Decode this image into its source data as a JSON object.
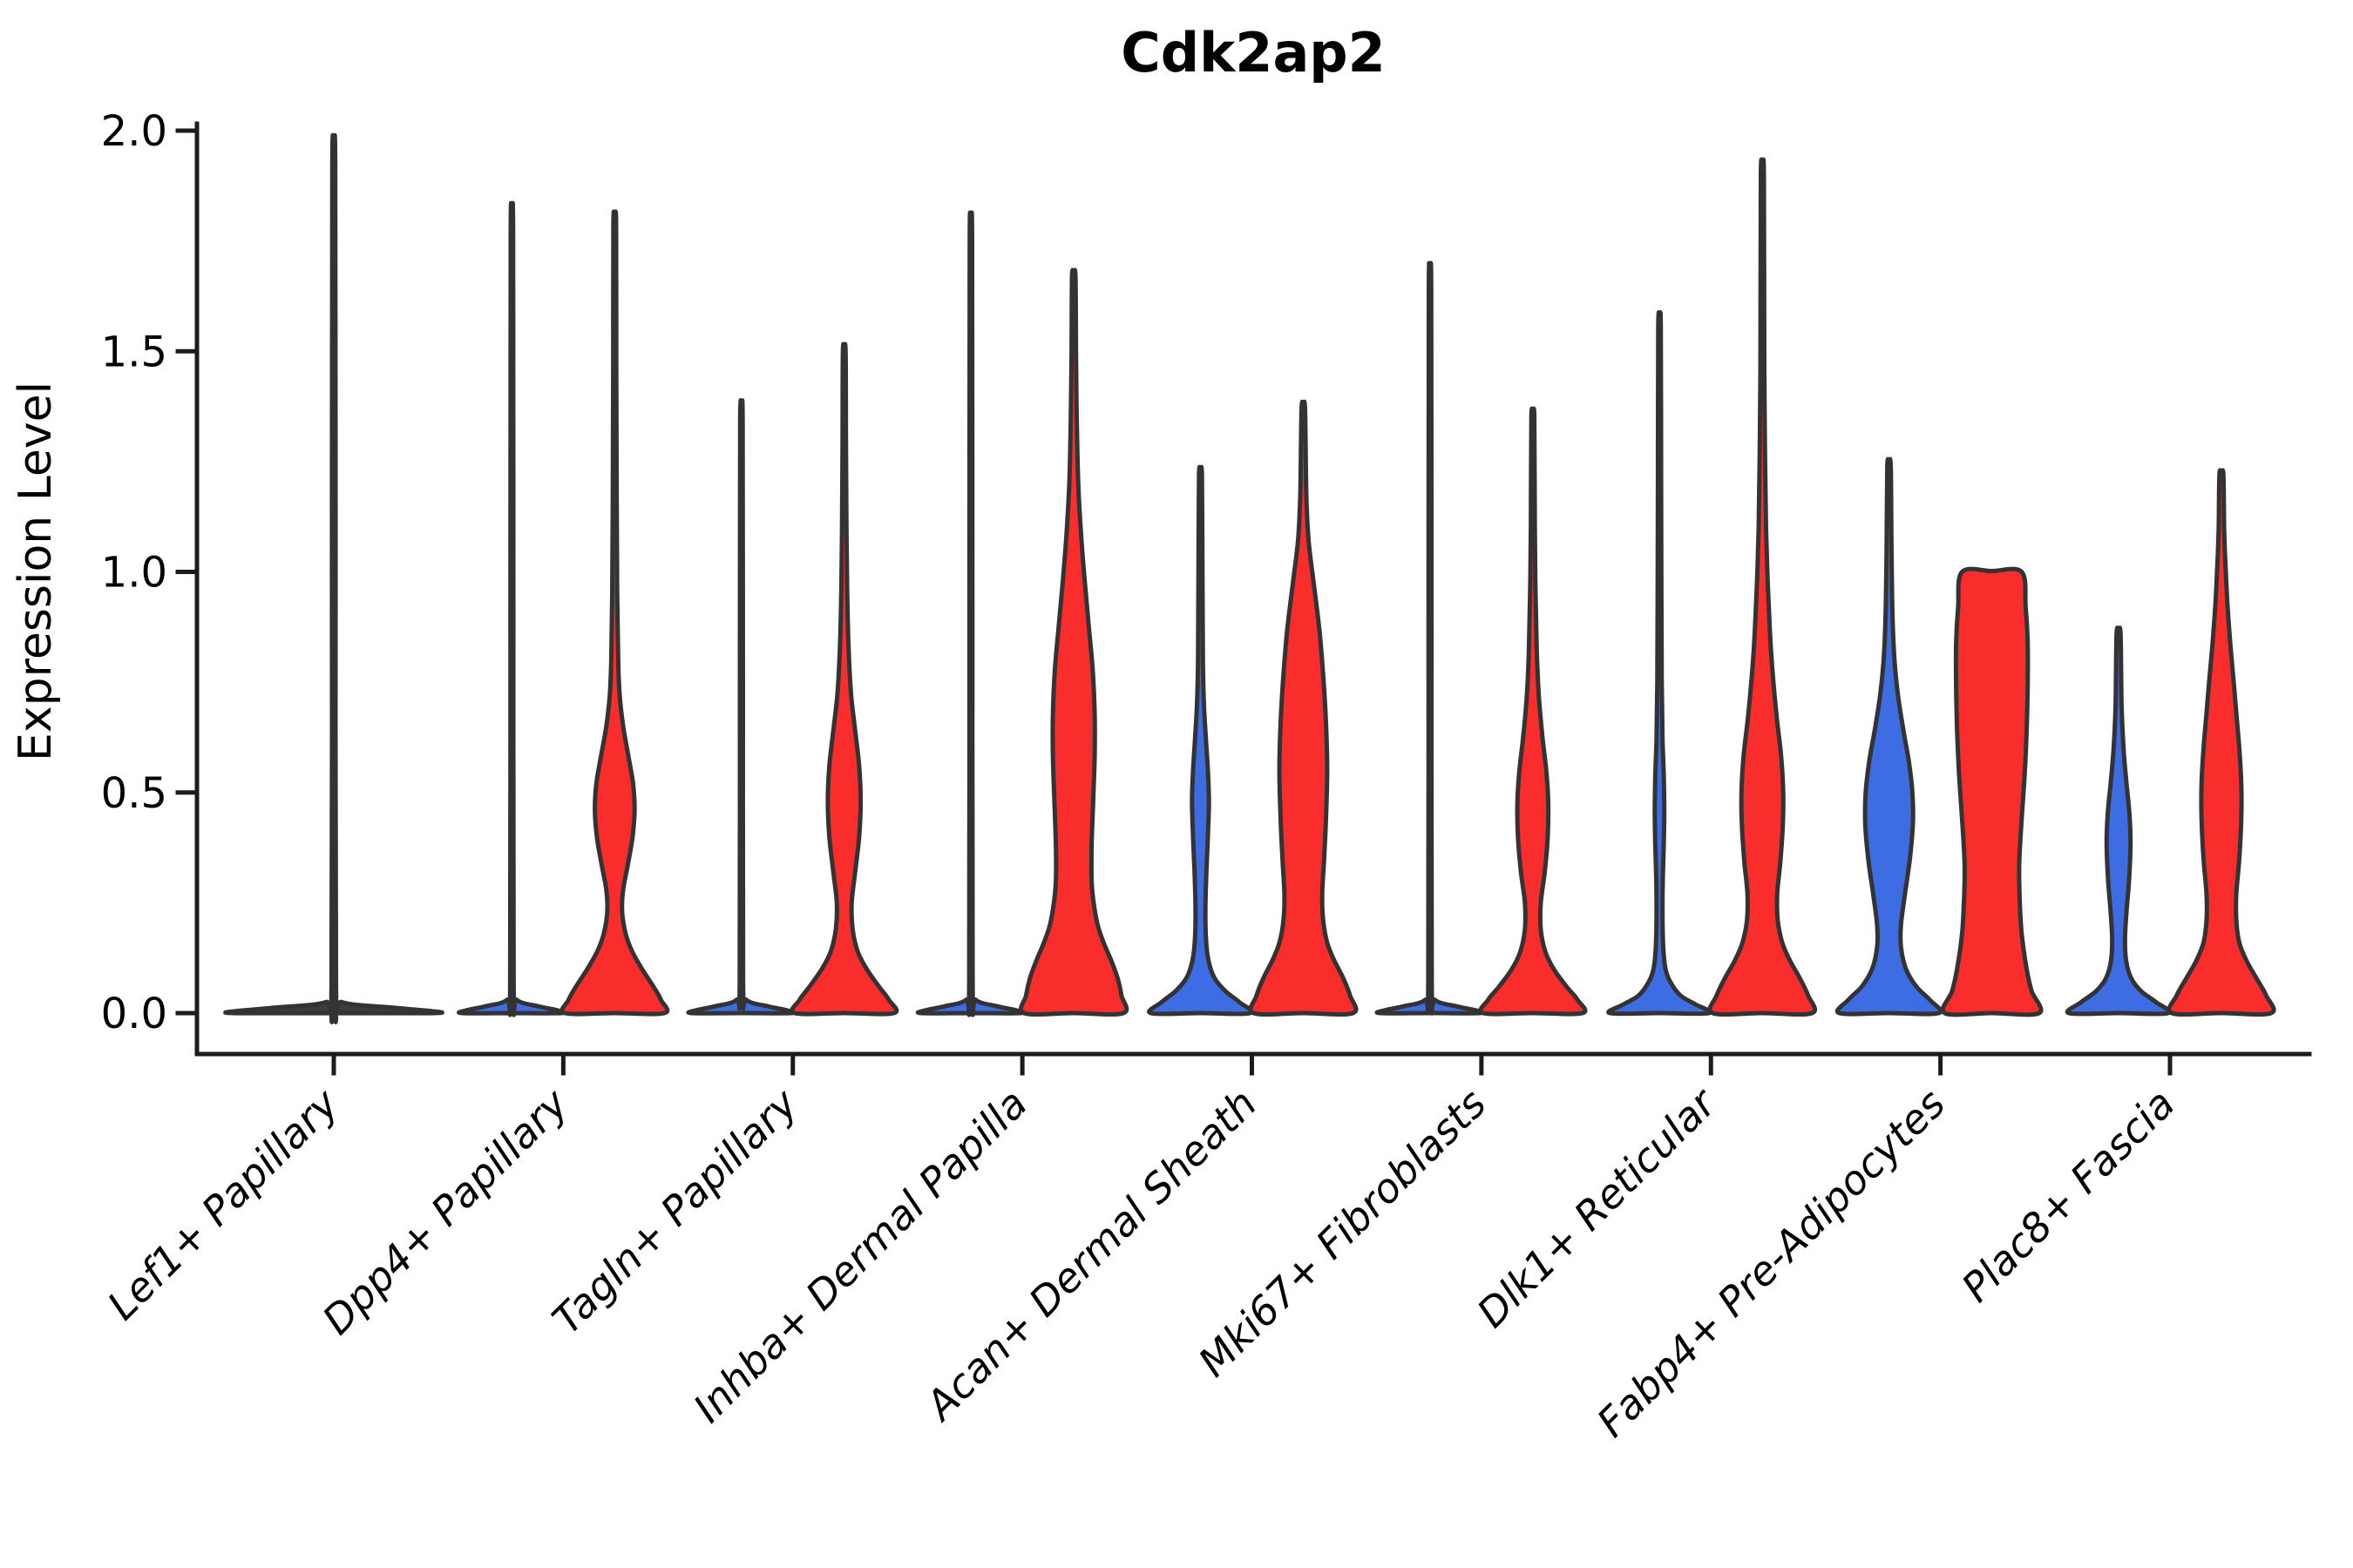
{
  "figure": {
    "title": "Cdk2ap2",
    "ylabel": "Expression Level"
  },
  "chart_data": {
    "type": "violin",
    "title": "Cdk2ap2",
    "xlabel": "",
    "ylabel": "Expression Level",
    "ylim": [
      -0.09,
      2.06
    ],
    "yticks": [
      0.0,
      0.5,
      1.0,
      1.5,
      2.0
    ],
    "ytick_labels": [
      "0.0",
      "0.5",
      "1.0",
      "1.5",
      "2.0"
    ],
    "grid": false,
    "legend_position": "none",
    "x_label_rotation_deg": 45,
    "categories": [
      "Lef1+ Papillary",
      "Dpp4+ Papillary",
      "Tagln+ Papillary",
      "Inhba+ Dermal Papilla",
      "Acan+ Dermal Sheath",
      "Mki67+ Fibroblasts",
      "Dlk1+ Reticular",
      "Fabp4+ Pre-Adipocytes",
      "Plac8+ Fascia"
    ],
    "colors": {
      "blue": "#3E6CE2",
      "red": "#FA2D2D",
      "flat_dark": "#3b3b3b",
      "outline": "#333333",
      "axis": "#1c1c1c"
    },
    "violins": [
      {
        "category": 0,
        "group": "single",
        "color_key": "flat_dark",
        "max_expression": 1.92,
        "clipped_top": false,
        "width": "full",
        "profile": [
          [
            0,
            1.0
          ],
          [
            0.005,
            0.95
          ],
          [
            0.012,
            0.6
          ],
          [
            0.025,
            0.08
          ],
          [
            0.06,
            0.022
          ],
          [
            1.0,
            0.018
          ],
          [
            1.92,
            0.015
          ]
        ]
      },
      {
        "category": 1,
        "group": "a",
        "color_key": "blue",
        "max_expression": 1.77,
        "clipped_top": false,
        "width": "half",
        "profile": [
          [
            0,
            1.0
          ],
          [
            0.006,
            0.93
          ],
          [
            0.015,
            0.55
          ],
          [
            0.03,
            0.1
          ],
          [
            0.07,
            0.035
          ],
          [
            0.9,
            0.03
          ],
          [
            1.77,
            0.025
          ]
        ]
      },
      {
        "category": 1,
        "group": "b",
        "color_key": "red",
        "max_expression": 1.79,
        "clipped_top": false,
        "width": "half",
        "profile": [
          [
            0,
            1.0
          ],
          [
            0.03,
            0.93
          ],
          [
            0.06,
            0.78
          ],
          [
            0.1,
            0.55
          ],
          [
            0.14,
            0.35
          ],
          [
            0.18,
            0.22
          ],
          [
            0.23,
            0.15
          ],
          [
            0.28,
            0.17
          ],
          [
            0.34,
            0.27
          ],
          [
            0.4,
            0.36
          ],
          [
            0.46,
            0.4
          ],
          [
            0.52,
            0.37
          ],
          [
            0.58,
            0.28
          ],
          [
            0.65,
            0.17
          ],
          [
            0.72,
            0.1
          ],
          [
            0.8,
            0.07
          ],
          [
            0.95,
            0.05
          ],
          [
            1.15,
            0.04
          ],
          [
            1.45,
            0.032
          ],
          [
            1.79,
            0.028
          ]
        ]
      },
      {
        "category": 2,
        "group": "a",
        "color_key": "blue",
        "max_expression": 1.34,
        "clipped_top": false,
        "width": "half",
        "profile": [
          [
            0,
            1.0
          ],
          [
            0.006,
            0.93
          ],
          [
            0.015,
            0.55
          ],
          [
            0.03,
            0.1
          ],
          [
            0.07,
            0.035
          ],
          [
            0.7,
            0.03
          ],
          [
            1.34,
            0.025
          ]
        ]
      },
      {
        "category": 2,
        "group": "b",
        "color_key": "red",
        "max_expression": 1.5,
        "clipped_top": false,
        "width": "half",
        "profile": [
          [
            0,
            1.0
          ],
          [
            0.03,
            0.9
          ],
          [
            0.06,
            0.7
          ],
          [
            0.1,
            0.45
          ],
          [
            0.14,
            0.27
          ],
          [
            0.19,
            0.17
          ],
          [
            0.25,
            0.15
          ],
          [
            0.32,
            0.22
          ],
          [
            0.4,
            0.3
          ],
          [
            0.48,
            0.33
          ],
          [
            0.56,
            0.3
          ],
          [
            0.64,
            0.22
          ],
          [
            0.72,
            0.14
          ],
          [
            0.82,
            0.09
          ],
          [
            0.95,
            0.06
          ],
          [
            1.1,
            0.045
          ],
          [
            1.3,
            0.035
          ],
          [
            1.5,
            0.028
          ]
        ]
      },
      {
        "category": 3,
        "group": "a",
        "color_key": "blue",
        "max_expression": 1.75,
        "clipped_top": false,
        "width": "half",
        "profile": [
          [
            0,
            1.0
          ],
          [
            0.006,
            0.93
          ],
          [
            0.015,
            0.55
          ],
          [
            0.03,
            0.1
          ],
          [
            0.07,
            0.035
          ],
          [
            0.9,
            0.03
          ],
          [
            1.75,
            0.025
          ]
        ]
      },
      {
        "category": 3,
        "group": "b",
        "color_key": "red",
        "max_expression": 1.67,
        "clipped_top": false,
        "width": "half",
        "profile": [
          [
            0,
            1.0
          ],
          [
            0.04,
            0.96
          ],
          [
            0.08,
            0.88
          ],
          [
            0.12,
            0.75
          ],
          [
            0.16,
            0.6
          ],
          [
            0.2,
            0.48
          ],
          [
            0.25,
            0.4
          ],
          [
            0.3,
            0.36
          ],
          [
            0.38,
            0.36
          ],
          [
            0.48,
            0.39
          ],
          [
            0.58,
            0.42
          ],
          [
            0.68,
            0.42
          ],
          [
            0.78,
            0.38
          ],
          [
            0.88,
            0.3
          ],
          [
            0.98,
            0.22
          ],
          [
            1.08,
            0.15
          ],
          [
            1.2,
            0.09
          ],
          [
            1.35,
            0.06
          ],
          [
            1.5,
            0.045
          ],
          [
            1.67,
            0.035
          ]
        ]
      },
      {
        "category": 4,
        "group": "a",
        "color_key": "blue",
        "max_expression": 1.22,
        "clipped_top": false,
        "width": "half",
        "profile": [
          [
            0,
            1.0
          ],
          [
            0.025,
            0.78
          ],
          [
            0.05,
            0.5
          ],
          [
            0.08,
            0.28
          ],
          [
            0.12,
            0.16
          ],
          [
            0.17,
            0.11
          ],
          [
            0.24,
            0.1
          ],
          [
            0.32,
            0.12
          ],
          [
            0.4,
            0.15
          ],
          [
            0.48,
            0.17
          ],
          [
            0.55,
            0.15
          ],
          [
            0.62,
            0.11
          ],
          [
            0.7,
            0.07
          ],
          [
            0.8,
            0.05
          ],
          [
            1.0,
            0.04
          ],
          [
            1.22,
            0.03
          ]
        ]
      },
      {
        "category": 4,
        "group": "b",
        "color_key": "red",
        "max_expression": 1.37,
        "clipped_top": false,
        "width": "half",
        "profile": [
          [
            0,
            1.0
          ],
          [
            0.04,
            0.94
          ],
          [
            0.08,
            0.8
          ],
          [
            0.12,
            0.62
          ],
          [
            0.16,
            0.48
          ],
          [
            0.21,
            0.4
          ],
          [
            0.27,
            0.38
          ],
          [
            0.35,
            0.42
          ],
          [
            0.45,
            0.46
          ],
          [
            0.55,
            0.48
          ],
          [
            0.65,
            0.46
          ],
          [
            0.75,
            0.41
          ],
          [
            0.85,
            0.34
          ],
          [
            0.93,
            0.26
          ],
          [
            1.0,
            0.18
          ],
          [
            1.08,
            0.1
          ],
          [
            1.18,
            0.06
          ],
          [
            1.37,
            0.035
          ]
        ]
      },
      {
        "category": 5,
        "group": "a",
        "color_key": "blue",
        "max_expression": 1.64,
        "clipped_top": false,
        "width": "half",
        "profile": [
          [
            0,
            1.0
          ],
          [
            0.006,
            0.93
          ],
          [
            0.015,
            0.55
          ],
          [
            0.03,
            0.1
          ],
          [
            0.07,
            0.035
          ],
          [
            0.85,
            0.03
          ],
          [
            1.64,
            0.025
          ]
        ]
      },
      {
        "category": 5,
        "group": "b",
        "color_key": "red",
        "max_expression": 1.35,
        "clipped_top": false,
        "width": "half",
        "profile": [
          [
            0,
            1.0
          ],
          [
            0.03,
            0.9
          ],
          [
            0.06,
            0.68
          ],
          [
            0.1,
            0.42
          ],
          [
            0.14,
            0.25
          ],
          [
            0.19,
            0.16
          ],
          [
            0.25,
            0.16
          ],
          [
            0.32,
            0.24
          ],
          [
            0.4,
            0.3
          ],
          [
            0.48,
            0.31
          ],
          [
            0.55,
            0.27
          ],
          [
            0.63,
            0.19
          ],
          [
            0.72,
            0.12
          ],
          [
            0.82,
            0.08
          ],
          [
            0.95,
            0.055
          ],
          [
            1.1,
            0.04
          ],
          [
            1.35,
            0.03
          ]
        ]
      },
      {
        "category": 6,
        "group": "a",
        "color_key": "blue",
        "max_expression": 1.56,
        "clipped_top": false,
        "width": "half",
        "profile": [
          [
            0,
            1.0
          ],
          [
            0.02,
            0.72
          ],
          [
            0.04,
            0.42
          ],
          [
            0.07,
            0.22
          ],
          [
            0.1,
            0.12
          ],
          [
            0.15,
            0.075
          ],
          [
            0.22,
            0.06
          ],
          [
            0.3,
            0.065
          ],
          [
            0.38,
            0.085
          ],
          [
            0.46,
            0.095
          ],
          [
            0.54,
            0.085
          ],
          [
            0.62,
            0.06
          ],
          [
            0.75,
            0.045
          ],
          [
            0.95,
            0.038
          ],
          [
            1.2,
            0.032
          ],
          [
            1.56,
            0.026
          ]
        ]
      },
      {
        "category": 6,
        "group": "b",
        "color_key": "red",
        "max_expression": 1.9,
        "clipped_top": false,
        "width": "half",
        "profile": [
          [
            0,
            1.0
          ],
          [
            0.04,
            0.92
          ],
          [
            0.08,
            0.75
          ],
          [
            0.12,
            0.55
          ],
          [
            0.16,
            0.4
          ],
          [
            0.21,
            0.31
          ],
          [
            0.27,
            0.3
          ],
          [
            0.34,
            0.36
          ],
          [
            0.42,
            0.41
          ],
          [
            0.5,
            0.42
          ],
          [
            0.58,
            0.38
          ],
          [
            0.66,
            0.3
          ],
          [
            0.74,
            0.23
          ],
          [
            0.83,
            0.17
          ],
          [
            0.92,
            0.13
          ],
          [
            1.0,
            0.1
          ],
          [
            1.1,
            0.075
          ],
          [
            1.25,
            0.055
          ],
          [
            1.45,
            0.04
          ],
          [
            1.9,
            0.03
          ]
        ]
      },
      {
        "category": 7,
        "group": "a",
        "color_key": "blue",
        "max_expression": 1.24,
        "clipped_top": false,
        "width": "half",
        "profile": [
          [
            0,
            1.0
          ],
          [
            0.03,
            0.82
          ],
          [
            0.06,
            0.55
          ],
          [
            0.1,
            0.34
          ],
          [
            0.15,
            0.24
          ],
          [
            0.2,
            0.24
          ],
          [
            0.27,
            0.32
          ],
          [
            0.35,
            0.42
          ],
          [
            0.43,
            0.48
          ],
          [
            0.5,
            0.47
          ],
          [
            0.57,
            0.4
          ],
          [
            0.64,
            0.29
          ],
          [
            0.72,
            0.18
          ],
          [
            0.8,
            0.11
          ],
          [
            0.9,
            0.07
          ],
          [
            1.05,
            0.05
          ],
          [
            1.24,
            0.035
          ]
        ]
      },
      {
        "category": 7,
        "group": "b",
        "color_key": "red",
        "max_expression": 1.0,
        "clipped_top": true,
        "width": "half",
        "profile": [
          [
            0,
            0.95
          ],
          [
            0.05,
            0.8
          ],
          [
            0.1,
            0.7
          ],
          [
            0.18,
            0.6
          ],
          [
            0.26,
            0.56
          ],
          [
            0.34,
            0.55
          ],
          [
            0.44,
            0.6
          ],
          [
            0.54,
            0.66
          ],
          [
            0.64,
            0.7
          ],
          [
            0.74,
            0.72
          ],
          [
            0.84,
            0.72
          ],
          [
            0.92,
            0.68
          ],
          [
            1.0,
            0.6
          ]
        ]
      },
      {
        "category": 8,
        "group": "a",
        "color_key": "blue",
        "max_expression": 0.86,
        "clipped_top": false,
        "width": "half",
        "profile": [
          [
            0,
            1.0
          ],
          [
            0.025,
            0.75
          ],
          [
            0.05,
            0.45
          ],
          [
            0.08,
            0.25
          ],
          [
            0.12,
            0.15
          ],
          [
            0.17,
            0.13
          ],
          [
            0.23,
            0.16
          ],
          [
            0.3,
            0.21
          ],
          [
            0.38,
            0.24
          ],
          [
            0.45,
            0.22
          ],
          [
            0.52,
            0.16
          ],
          [
            0.6,
            0.1
          ],
          [
            0.7,
            0.06
          ],
          [
            0.86,
            0.04
          ]
        ]
      },
      {
        "category": 8,
        "group": "b",
        "color_key": "red",
        "max_expression": 1.22,
        "clipped_top": false,
        "width": "half",
        "profile": [
          [
            0,
            1.0
          ],
          [
            0.04,
            0.9
          ],
          [
            0.08,
            0.7
          ],
          [
            0.12,
            0.5
          ],
          [
            0.16,
            0.36
          ],
          [
            0.21,
            0.3
          ],
          [
            0.27,
            0.3
          ],
          [
            0.35,
            0.36
          ],
          [
            0.44,
            0.4
          ],
          [
            0.52,
            0.4
          ],
          [
            0.6,
            0.36
          ],
          [
            0.68,
            0.3
          ],
          [
            0.76,
            0.24
          ],
          [
            0.85,
            0.17
          ],
          [
            0.93,
            0.12
          ],
          [
            1.02,
            0.08
          ],
          [
            1.1,
            0.055
          ],
          [
            1.22,
            0.04
          ]
        ]
      }
    ]
  }
}
